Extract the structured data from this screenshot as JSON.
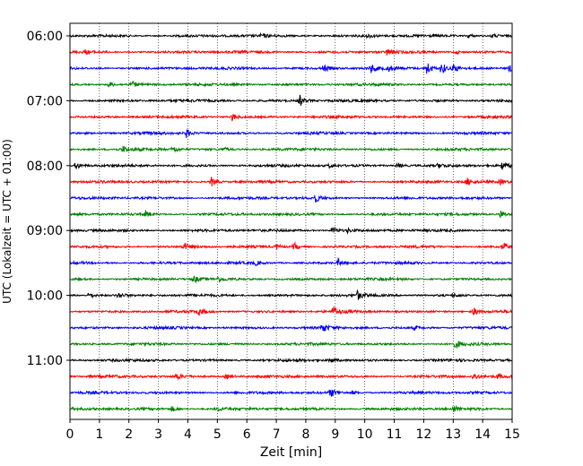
{
  "chart_data": {
    "type": "line",
    "title": "",
    "xlabel": "Zeit  [min]",
    "ylabel": "UTC (Lokalzeit = UTC + 01:00)",
    "xlim": [
      0,
      15
    ],
    "x_ticks": [
      "0",
      "1",
      "2",
      "3",
      "4",
      "5",
      "6",
      "7",
      "8",
      "9",
      "10",
      "11",
      "12",
      "13",
      "14",
      "15"
    ],
    "y_ticks": [
      "06:00",
      "07:00",
      "08:00",
      "09:00",
      "10:00",
      "11:00"
    ],
    "row_interval_minutes": 15,
    "grid_x": true,
    "grid_x_style": "dotted",
    "trace_colors": [
      "#000000",
      "#ff0000",
      "#0000ff",
      "#008000"
    ],
    "series": [
      {
        "start": "06:00",
        "color": "#000000",
        "events": [
          [
            6.5,
            2
          ],
          [
            10.1,
            2
          ],
          [
            13.5,
            2.5
          ],
          [
            14.3,
            2.5
          ]
        ]
      },
      {
        "start": "06:15",
        "color": "#ff0000",
        "events": [
          [
            0.5,
            2
          ],
          [
            10.75,
            3.5
          ],
          [
            13.1,
            2
          ]
        ]
      },
      {
        "start": "06:30",
        "color": "#0000ff",
        "events": [
          [
            8.6,
            4
          ],
          [
            10.2,
            5
          ],
          [
            10.8,
            3
          ],
          [
            12.1,
            8
          ],
          [
            12.6,
            7
          ],
          [
            13.0,
            5
          ],
          [
            14.9,
            4
          ]
        ]
      },
      {
        "start": "06:45",
        "color": "#008000",
        "events": [
          [
            1.3,
            3
          ],
          [
            2.1,
            3.5
          ]
        ]
      },
      {
        "start": "07:00",
        "color": "#000000",
        "events": [
          [
            7.8,
            6
          ]
        ]
      },
      {
        "start": "07:15",
        "color": "#ff0000",
        "events": [
          [
            5.5,
            4
          ]
        ]
      },
      {
        "start": "07:30",
        "color": "#0000ff",
        "events": [
          [
            3.95,
            4.5
          ]
        ]
      },
      {
        "start": "07:45",
        "color": "#008000",
        "events": [
          [
            1.8,
            3
          ],
          [
            3.5,
            3.5
          ],
          [
            5.2,
            2
          ]
        ]
      },
      {
        "start": "08:00",
        "color": "#000000",
        "events": [
          [
            0.2,
            4.5
          ],
          [
            8.8,
            2
          ],
          [
            11.1,
            3.5
          ],
          [
            12.5,
            2
          ],
          [
            14.65,
            5
          ]
        ]
      },
      {
        "start": "08:15",
        "color": "#ff0000",
        "events": [
          [
            4.8,
            5
          ],
          [
            13.45,
            4.5
          ],
          [
            14.6,
            2.5
          ]
        ]
      },
      {
        "start": "08:30",
        "color": "#0000ff",
        "events": [
          [
            8.3,
            5
          ]
        ]
      },
      {
        "start": "08:45",
        "color": "#008000",
        "events": [
          [
            2.55,
            4
          ],
          [
            14.6,
            5
          ]
        ]
      },
      {
        "start": "09:00",
        "color": "#000000",
        "events": [
          [
            8.9,
            4.5
          ],
          [
            9.4,
            2.5
          ]
        ]
      },
      {
        "start": "09:15",
        "color": "#ff0000",
        "events": [
          [
            3.85,
            4
          ],
          [
            7.0,
            2.5
          ],
          [
            7.6,
            4.5
          ],
          [
            14.7,
            4.5
          ]
        ]
      },
      {
        "start": "09:30",
        "color": "#0000ff",
        "events": [
          [
            6.3,
            2
          ],
          [
            9.1,
            4
          ]
        ]
      },
      {
        "start": "09:45",
        "color": "#008000",
        "events": [
          [
            4.2,
            4
          ],
          [
            5.0,
            2
          ]
        ]
      },
      {
        "start": "10:00",
        "color": "#000000",
        "events": [
          [
            0.65,
            4
          ],
          [
            1.65,
            3
          ],
          [
            9.75,
            4.5
          ],
          [
            13.0,
            2
          ]
        ]
      },
      {
        "start": "10:15",
        "color": "#ff0000",
        "events": [
          [
            4.35,
            4
          ],
          [
            8.95,
            5
          ],
          [
            13.7,
            4
          ]
        ]
      },
      {
        "start": "10:30",
        "color": "#0000ff",
        "events": [
          [
            8.55,
            5
          ],
          [
            11.7,
            2
          ]
        ]
      },
      {
        "start": "10:45",
        "color": "#008000",
        "events": [
          [
            13.1,
            4.5
          ]
        ]
      },
      {
        "start": "11:00",
        "color": "#000000",
        "events": [
          [
            8.8,
            3
          ]
        ]
      },
      {
        "start": "11:15",
        "color": "#ff0000",
        "events": [
          [
            3.6,
            4
          ],
          [
            5.3,
            3
          ],
          [
            13.7,
            4
          ],
          [
            14.5,
            3
          ]
        ]
      },
      {
        "start": "11:30",
        "color": "#0000ff",
        "events": [
          [
            8.85,
            4.5
          ],
          [
            9.6,
            2
          ]
        ]
      },
      {
        "start": "11:45",
        "color": "#008000",
        "events": [
          [
            3.45,
            3
          ],
          [
            5.0,
            2
          ],
          [
            13.0,
            3.5
          ]
        ]
      }
    ]
  }
}
